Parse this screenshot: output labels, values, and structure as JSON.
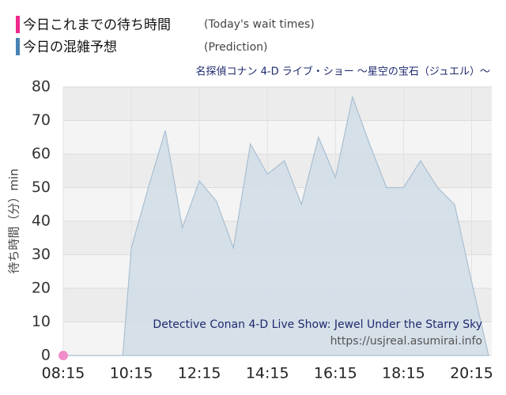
{
  "chart_data": {
    "type": "area",
    "legend": [
      {
        "name": "今日これまでの待ち時間",
        "subname": "(Today's wait times)",
        "color": "#f0288c"
      },
      {
        "name": "今日の混雑予想",
        "subname": "(Prediction)",
        "color": "#4682b4"
      }
    ],
    "subtitle": "名探偵コナン 4-D ライブ・ショー ～星空の宝石（ジュエル）～",
    "annotation": "Detective Conan 4-D Live Show: Jewel Under the Starry Sky",
    "source": "https://usjreal.asumirai.info",
    "y_label": "待ち時間（分）min",
    "xlim": [
      "08:15",
      "20:45"
    ],
    "xticks": [
      "08:15",
      "10:15",
      "12:15",
      "14:15",
      "16:15",
      "18:15",
      "20:15"
    ],
    "ylim": [
      0,
      80
    ],
    "yticks": [
      0,
      10,
      20,
      30,
      40,
      50,
      60,
      70,
      80
    ],
    "series": [
      {
        "name": "今日の混雑予想",
        "color": "#a9bfd3",
        "x": [
          "08:15",
          "09:45",
          "10:00",
          "10:15",
          "10:45",
          "11:15",
          "11:45",
          "12:15",
          "12:45",
          "13:15",
          "13:45",
          "14:15",
          "14:45",
          "15:15",
          "15:45",
          "16:15",
          "16:45",
          "17:15",
          "17:45",
          "18:15",
          "18:45",
          "19:15",
          "19:45",
          "20:15",
          "20:45"
        ],
        "values": [
          0,
          0,
          0,
          32,
          50,
          67,
          38,
          52,
          46,
          32,
          63,
          54,
          58,
          45,
          65,
          53,
          77,
          63,
          50,
          50,
          58,
          50,
          45,
          22,
          0
        ]
      },
      {
        "name": "今日これまでの待ち時間",
        "color": "#f08cc8",
        "x": [
          "08:15"
        ],
        "values": [
          0
        ]
      }
    ]
  }
}
